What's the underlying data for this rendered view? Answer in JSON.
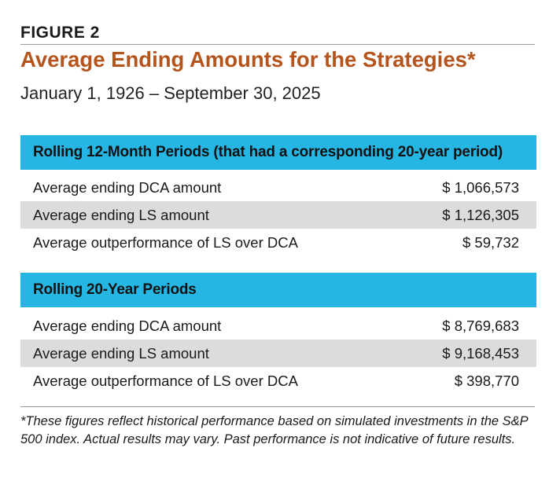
{
  "figure_label": "FIGURE 2",
  "title": "Average Ending Amounts for the Strategies*",
  "subtitle": "January 1, 1926 – September 30, 2025",
  "sections": [
    {
      "heading": "Rolling 12-Month Periods (that had a corresponding 20-year period)",
      "rows": [
        {
          "label": "Average ending DCA amount",
          "value": "$ 1,066,573"
        },
        {
          "label": "Average ending LS amount",
          "value": "$ 1,126,305"
        },
        {
          "label": "Average outperformance of LS over DCA",
          "value": "$ 59,732"
        }
      ]
    },
    {
      "heading": "Rolling 20-Year Periods",
      "rows": [
        {
          "label": "Average ending DCA amount",
          "value": "$ 8,769,683"
        },
        {
          "label": "Average ending LS amount",
          "value": "$ 9,168,453"
        },
        {
          "label": "Average outperformance of LS over DCA",
          "value": "$ 398,770"
        }
      ]
    }
  ],
  "footnote": "*These figures reflect historical performance based on simulated investments in the S&P 500 index. Actual results may vary. Past performance is not indicative of future results.",
  "colors": {
    "title": "#b5541c",
    "section_header": "#25b6e3",
    "alt_row": "#dcdcdc"
  }
}
